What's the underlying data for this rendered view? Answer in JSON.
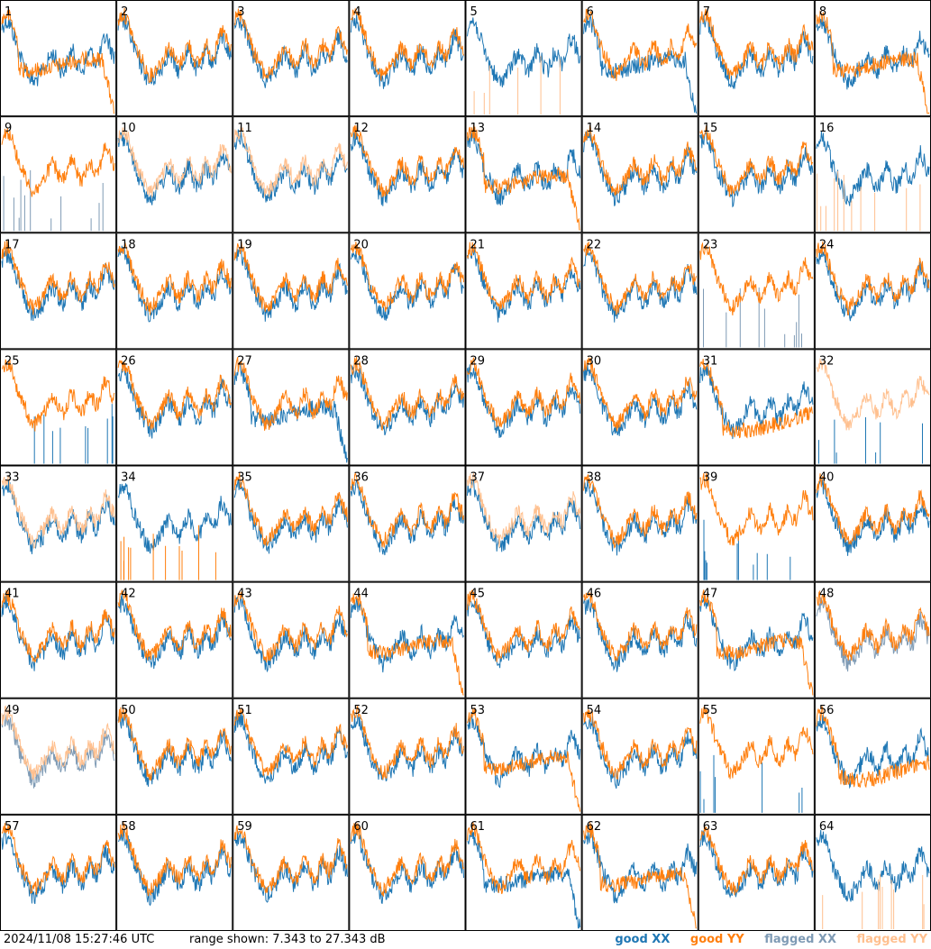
{
  "chart_data": {
    "type": "line",
    "panel_count": 64,
    "columns": 8,
    "rows": 8,
    "panels": [
      "1",
      "2",
      "3",
      "4",
      "5",
      "6",
      "7",
      "8",
      "9",
      "10",
      "11",
      "12",
      "13",
      "14",
      "15",
      "16",
      "17",
      "18",
      "19",
      "20",
      "21",
      "22",
      "23",
      "24",
      "25",
      "26",
      "27",
      "28",
      "29",
      "30",
      "31",
      "32",
      "33",
      "34",
      "35",
      "36",
      "37",
      "38",
      "39",
      "40",
      "41",
      "42",
      "43",
      "44",
      "45",
      "46",
      "47",
      "48",
      "49",
      "50",
      "51",
      "52",
      "53",
      "54",
      "55",
      "56",
      "57",
      "58",
      "59",
      "60",
      "61",
      "62",
      "63",
      "64"
    ],
    "range_db": [
      7.343,
      27.343
    ],
    "grid": false,
    "legend_position": "bottom-right",
    "panel_states": {
      "1": {
        "xx": "good",
        "yy": "good",
        "yy_shape": "flat-drop"
      },
      "5": {
        "xx": "good",
        "yy": "flagged",
        "yy_shape": "spikes"
      },
      "6": {
        "xx": "good",
        "yy": "good",
        "xx_shape": "flat-drop"
      },
      "8": {
        "xx": "good",
        "yy": "good",
        "yy_shape": "flat-drop"
      },
      "9": {
        "xx": "flagged",
        "yy": "good",
        "xx_shape": "spikes"
      },
      "10": {
        "xx": "good",
        "yy": "flagged"
      },
      "11": {
        "xx": "good",
        "yy": "flagged"
      },
      "13": {
        "xx": "good",
        "yy": "good",
        "yy_shape": "flat-drop"
      },
      "16": {
        "xx": "good",
        "yy": "flagged",
        "yy_shape": "spikes"
      },
      "23": {
        "xx": "flagged",
        "yy": "good",
        "xx_shape": "spikes"
      },
      "25": {
        "xx": "good",
        "yy": "good",
        "xx_shape": "spikes"
      },
      "27": {
        "xx": "good",
        "yy": "good",
        "xx_shape": "flat-drop"
      },
      "31": {
        "xx": "good",
        "yy": "good",
        "yy_shape": "flat"
      },
      "32": {
        "xx": "good",
        "yy": "flagged",
        "xx_shape": "spikes"
      },
      "33": {
        "xx": "good",
        "yy": "flagged"
      },
      "34": {
        "xx": "good",
        "yy": "good",
        "yy_shape": "spikes"
      },
      "37": {
        "xx": "good",
        "yy": "flagged"
      },
      "39": {
        "xx": "good",
        "yy": "good",
        "xx_shape": "spikes"
      },
      "44": {
        "xx": "good",
        "yy": "good",
        "yy_shape": "flat-drop"
      },
      "47": {
        "xx": "good",
        "yy": "good",
        "yy_shape": "flat-drop"
      },
      "48": {
        "xx": "flagged",
        "yy": "good"
      },
      "49": {
        "xx": "flagged",
        "yy": "flagged"
      },
      "53": {
        "xx": "good",
        "yy": "good",
        "yy_shape": "flat-drop"
      },
      "55": {
        "xx": "good",
        "yy": "good",
        "xx_shape": "spikes"
      },
      "56": {
        "xx": "good",
        "yy": "good",
        "yy_shape": "flat"
      },
      "61": {
        "xx": "good",
        "yy": "good",
        "xx_shape": "flat-drop"
      },
      "62": {
        "xx": "good",
        "yy": "good",
        "yy_shape": "flat-drop"
      },
      "64": {
        "xx": "good",
        "yy": "flagged",
        "yy_shape": "spikes"
      }
    },
    "series_colors": {
      "good_xx": "#1f77b4",
      "good_yy": "#ff7f0e",
      "flagged_xx": "#7f9bb5",
      "flagged_yy": "#ffc08f"
    }
  },
  "footer": {
    "timestamp": "2024/11/08 15:27:46 UTC",
    "range_text": "range shown: 7.343 to 27.343 dB"
  },
  "legend": {
    "good_xx": "good XX",
    "good_yy": "good YY",
    "flagged_xx": "flagged XX",
    "flagged_yy": "flagged YY"
  }
}
